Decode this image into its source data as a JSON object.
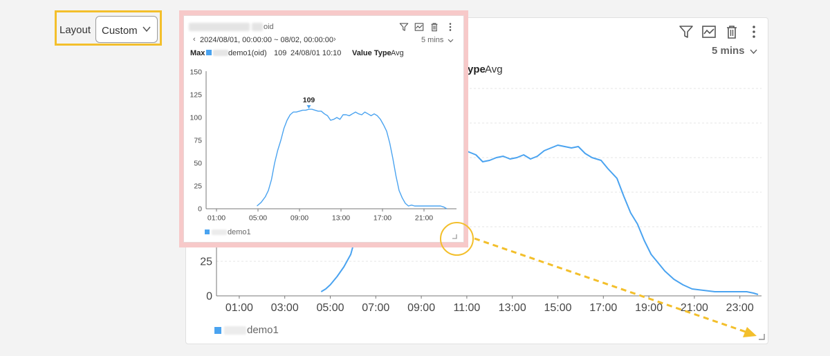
{
  "layout": {
    "label": "Layout",
    "selected": "Custom"
  },
  "big_widget": {
    "interval": "5 mins",
    "value_type_label": "ype",
    "value_type": "Avg",
    "legend": "demo1",
    "chart_data": {
      "type": "line",
      "x_labels": [
        "01:00",
        "03:00",
        "05:00",
        "07:00",
        "09:00",
        "11:00",
        "13:00",
        "15:00",
        "17:00",
        "19:00",
        "21:00",
        "23:00"
      ],
      "y_ticks": [
        "0",
        "25"
      ],
      "ylim": [
        0,
        150
      ],
      "series": [
        {
          "name": "demo1",
          "color": "#4aa3f0",
          "x": [
            4.6,
            4.8,
            5.0,
            5.3,
            5.6,
            5.9,
            6.1,
            6.3,
            6.5,
            6.8,
            7.1,
            7.4,
            7.8,
            8.2,
            8.6,
            9.0,
            9.4,
            9.8,
            10.2,
            10.5,
            10.8,
            11.1,
            11.4,
            11.7,
            12.0,
            12.3,
            12.6,
            12.9,
            13.2,
            13.5,
            13.8,
            14.1,
            14.4,
            14.7,
            15.0,
            15.3,
            15.6,
            15.9,
            16.2,
            16.5,
            16.9,
            17.2,
            17.6,
            17.9,
            18.2,
            18.5,
            18.8,
            19.1,
            19.4,
            19.7,
            20.1,
            20.5,
            20.9,
            21.4,
            21.9,
            22.5,
            22.9,
            23.3,
            23.6,
            23.8
          ],
          "y": [
            3,
            5,
            8,
            14,
            21,
            30,
            42,
            55,
            65,
            74,
            82,
            90,
            96,
            100,
            103,
            106,
            108,
            108,
            108,
            109,
            106,
            104,
            102,
            97,
            98,
            100,
            101,
            99,
            100,
            102,
            99,
            101,
            105,
            107,
            109,
            108,
            107,
            108,
            103,
            100,
            98,
            92,
            85,
            72,
            60,
            52,
            40,
            30,
            24,
            18,
            12,
            8,
            5,
            4,
            3,
            3,
            3,
            3,
            2,
            1
          ]
        }
      ]
    }
  },
  "small_widget": {
    "title_suffix": "oid",
    "date_range": "2024/08/01, 00:00:00 ~ 08/02, 00:00:00",
    "interval": "5 mins",
    "max_label": "Max",
    "max_series": "demo1(oid)",
    "max_value": "109",
    "max_time": "24/08/01 10:10",
    "value_type_label": "Value Type",
    "value_type": "Avg",
    "peak_label": "109",
    "legend": "demo1",
    "chart_data": {
      "type": "line",
      "x_labels": [
        "01:00",
        "05:00",
        "09:00",
        "13:00",
        "17:00",
        "21:00"
      ],
      "y_ticks": [
        "0",
        "25",
        "50",
        "75",
        "100",
        "125",
        "150"
      ],
      "ylim": [
        0,
        150
      ],
      "series": [
        {
          "name": "demo1",
          "color": "#4aa3f0",
          "x": [
            4.9,
            5.3,
            5.7,
            6.0,
            6.3,
            6.6,
            6.9,
            7.2,
            7.5,
            7.8,
            8.1,
            8.4,
            8.7,
            9.0,
            9.3,
            9.6,
            9.9,
            10.2,
            10.5,
            10.8,
            11.1,
            11.4,
            11.7,
            12.0,
            12.3,
            12.6,
            12.9,
            13.2,
            13.5,
            13.8,
            14.1,
            14.4,
            14.7,
            15.0,
            15.3,
            15.6,
            15.9,
            16.2,
            16.5,
            16.8,
            17.1,
            17.4,
            17.7,
            18.0,
            18.3,
            18.6,
            18.9,
            19.2,
            19.5,
            19.8,
            20.1,
            20.4,
            20.8,
            21.2,
            21.6,
            22.0,
            22.3,
            22.6,
            22.9,
            23.2
          ],
          "y": [
            3,
            7,
            13,
            20,
            32,
            50,
            64,
            75,
            88,
            97,
            103,
            106,
            106,
            107,
            108,
            108,
            109,
            109,
            108,
            107,
            107,
            104,
            102,
            97,
            98,
            100,
            98,
            103,
            103,
            102,
            104,
            106,
            104,
            103,
            106,
            104,
            102,
            104,
            102,
            98,
            92,
            85,
            72,
            55,
            36,
            20,
            12,
            6,
            3,
            4,
            3,
            3,
            3,
            3,
            3,
            3,
            3,
            3,
            2,
            0
          ]
        }
      ]
    }
  }
}
